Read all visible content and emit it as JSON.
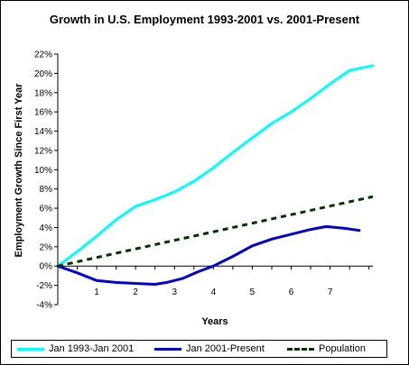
{
  "chart_data": {
    "type": "line",
    "title": "Growth in U.S. Employment 1993-2001 vs. 2001-Present",
    "xlabel": "Years",
    "ylabel": "Employment Growth Since First Year",
    "xlim": [
      0,
      8.1
    ],
    "ylim": [
      -4,
      22
    ],
    "x_ticks": [
      1,
      2,
      3,
      4,
      5,
      6,
      7
    ],
    "y_ticks": [
      "-4%",
      "-2%",
      "0%",
      "2%",
      "4%",
      "6%",
      "8%",
      "10%",
      "12%",
      "14%",
      "16%",
      "18%",
      "20%",
      "22%"
    ],
    "grid": false,
    "legend_position": "bottom",
    "series": [
      {
        "name": "Jan 1993-Jan 2001",
        "color": "#00ffff",
        "style": "solid",
        "x": [
          0,
          0.5,
          1,
          1.5,
          2,
          2.5,
          3,
          3.5,
          4,
          4.5,
          5,
          5.5,
          6,
          6.5,
          7,
          7.5,
          8.1
        ],
        "y": [
          0,
          1.5,
          3.1,
          4.8,
          6.2,
          6.9,
          7.7,
          8.8,
          10.2,
          11.8,
          13.3,
          14.8,
          16.0,
          17.4,
          18.9,
          20.3,
          20.8
        ]
      },
      {
        "name": "Jan 2001-Present",
        "color": "#0000cc",
        "style": "solid",
        "x": [
          0,
          0.5,
          1,
          1.5,
          2,
          2.5,
          2.8,
          3.2,
          3.6,
          4,
          4.5,
          5,
          5.5,
          6,
          6.5,
          6.9,
          7.4,
          7.75
        ],
        "y": [
          0,
          -0.7,
          -1.5,
          -1.7,
          -1.8,
          -1.9,
          -1.7,
          -1.3,
          -0.6,
          0.0,
          1.0,
          2.1,
          2.8,
          3.3,
          3.8,
          4.1,
          3.9,
          3.7
        ]
      },
      {
        "name": "Population",
        "color": "#003300",
        "style": "dashed",
        "x": [
          0,
          8.1
        ],
        "y": [
          0,
          7.2
        ]
      }
    ]
  }
}
